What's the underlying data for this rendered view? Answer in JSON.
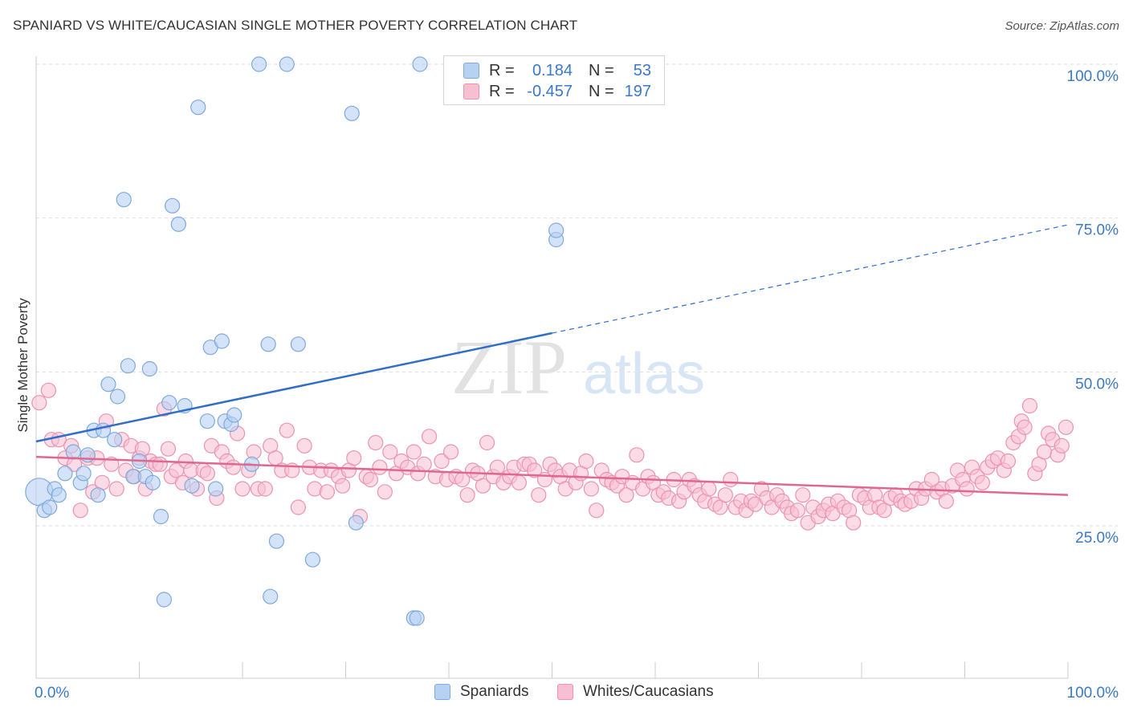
{
  "title": "SPANIARD VS WHITE/CAUCASIAN SINGLE MOTHER POVERTY CORRELATION CHART",
  "source": "Source: ZipAtlas.com",
  "watermark": {
    "zip": "ZIP",
    "atlas": "atlas"
  },
  "colors": {
    "blue_fill": "#b7d1f2",
    "blue_stroke": "#7fa9dc",
    "blue_line": "#2f6fc8",
    "pink_fill": "#f7c0d1",
    "pink_stroke": "#ec92b0",
    "pink_line": "#e0688f",
    "tick_label": "#3a78c8",
    "grid": "#dddddd"
  },
  "legend": {
    "rows": [
      {
        "r_label": "R =",
        "r_value": "0.184",
        "n_label": "N =",
        "n_value": "53"
      },
      {
        "r_label": "R =",
        "r_value": "-0.457",
        "n_label": "N =",
        "n_value": "197"
      }
    ]
  },
  "bottom_legend": {
    "items": [
      "Spaniards",
      "Whites/Caucasians"
    ]
  },
  "chart_data": {
    "type": "scatter",
    "title": "SPANIARD VS WHITE/CAUCASIAN SINGLE MOTHER POVERTY CORRELATION CHART",
    "xlabel": "",
    "ylabel": "Single Mother Poverty",
    "x_tick_labels": [
      "0.0%",
      "100.0%"
    ],
    "y_tick_labels": [
      "25.0%",
      "50.0%",
      "75.0%",
      "100.0%"
    ],
    "y_ticks": [
      25,
      50,
      75,
      100
    ],
    "xlim": [
      0,
      100
    ],
    "ylim": [
      0,
      102
    ],
    "grid": true,
    "series": [
      {
        "name": "Spaniards",
        "points": [
          [
            0.3,
            30.5
          ],
          [
            0.8,
            27.5
          ],
          [
            1.3,
            28
          ],
          [
            1.8,
            31
          ],
          [
            2.2,
            30
          ],
          [
            2.8,
            33.5
          ],
          [
            3.6,
            37
          ],
          [
            4.3,
            32
          ],
          [
            4.6,
            33.5
          ],
          [
            5,
            36.5
          ],
          [
            5.6,
            40.5
          ],
          [
            6,
            30
          ],
          [
            6.5,
            40.5
          ],
          [
            7,
            48
          ],
          [
            7.6,
            39
          ],
          [
            7.9,
            46
          ],
          [
            8.5,
            78
          ],
          [
            8.9,
            51
          ],
          [
            9.4,
            33
          ],
          [
            10,
            35.5
          ],
          [
            10.6,
            33
          ],
          [
            11,
            50.5
          ],
          [
            11.3,
            32
          ],
          [
            12.1,
            26.5
          ],
          [
            12.4,
            13
          ],
          [
            12.9,
            45
          ],
          [
            13.2,
            77
          ],
          [
            13.8,
            74
          ],
          [
            14.4,
            44.5
          ],
          [
            15.1,
            31.5
          ],
          [
            15.7,
            93
          ],
          [
            16.6,
            42
          ],
          [
            16.9,
            54
          ],
          [
            17.4,
            31
          ],
          [
            18,
            55
          ],
          [
            18.3,
            42
          ],
          [
            18.9,
            41.5
          ],
          [
            19.2,
            43
          ],
          [
            20.9,
            35
          ],
          [
            21.6,
            100
          ],
          [
            22.5,
            54.5
          ],
          [
            22.7,
            13.5
          ],
          [
            23.3,
            22.5
          ],
          [
            24.3,
            100
          ],
          [
            25.4,
            54.5
          ],
          [
            26.8,
            19.5
          ],
          [
            30.6,
            92
          ],
          [
            31,
            25.5
          ],
          [
            36.6,
            10
          ],
          [
            36.9,
            10
          ],
          [
            37.2,
            100
          ],
          [
            50.4,
            71.5
          ],
          [
            50.4,
            73
          ]
        ]
      },
      {
        "name": "Whites/Caucasians",
        "points": [
          [
            0.3,
            45
          ],
          [
            1.2,
            47
          ],
          [
            1.5,
            39
          ],
          [
            2.2,
            39
          ],
          [
            2.8,
            36
          ],
          [
            3.4,
            38
          ],
          [
            3.7,
            35
          ],
          [
            4.3,
            27.5
          ],
          [
            5,
            36
          ],
          [
            5.5,
            30.5
          ],
          [
            5.9,
            36
          ],
          [
            6.4,
            32
          ],
          [
            6.8,
            42
          ],
          [
            7.3,
            35
          ],
          [
            7.8,
            31
          ],
          [
            8.3,
            39
          ],
          [
            8.7,
            34
          ],
          [
            9.2,
            38
          ],
          [
            9.5,
            33
          ],
          [
            10,
            36
          ],
          [
            10.3,
            37.5
          ],
          [
            10.6,
            31
          ],
          [
            11.1,
            35.5
          ],
          [
            11.6,
            35
          ],
          [
            12,
            35
          ],
          [
            12.4,
            44
          ],
          [
            12.8,
            37.5
          ],
          [
            13.1,
            33
          ],
          [
            13.6,
            34
          ],
          [
            14.2,
            32
          ],
          [
            14.5,
            35.5
          ],
          [
            15,
            34
          ],
          [
            15.6,
            31
          ],
          [
            16.2,
            34
          ],
          [
            16.6,
            33.5
          ],
          [
            17,
            38
          ],
          [
            17.5,
            29.5
          ],
          [
            18,
            37
          ],
          [
            18.5,
            35.5
          ],
          [
            19.1,
            34.5
          ],
          [
            19.5,
            40
          ],
          [
            20,
            31
          ],
          [
            20.6,
            34
          ],
          [
            21.1,
            37
          ],
          [
            21.5,
            31
          ],
          [
            22.2,
            31
          ],
          [
            22.7,
            38
          ],
          [
            23.2,
            36
          ],
          [
            23.8,
            34
          ],
          [
            24.3,
            40.5
          ],
          [
            24.8,
            34
          ],
          [
            25.4,
            28
          ],
          [
            26,
            38
          ],
          [
            26.5,
            34.5
          ],
          [
            27,
            31
          ],
          [
            27.6,
            34
          ],
          [
            28.2,
            30.5
          ],
          [
            28.6,
            34
          ],
          [
            29.3,
            33
          ],
          [
            29.7,
            31.5
          ],
          [
            30.3,
            34
          ],
          [
            30.8,
            36
          ],
          [
            31.4,
            26.5
          ],
          [
            32,
            33
          ],
          [
            32.4,
            32.5
          ],
          [
            32.9,
            38.5
          ],
          [
            33.3,
            34.5
          ],
          [
            33.8,
            30.5
          ],
          [
            34.3,
            37
          ],
          [
            34.9,
            33.5
          ],
          [
            35.4,
            35.5
          ],
          [
            36,
            34.5
          ],
          [
            36.6,
            37
          ],
          [
            37,
            33.5
          ],
          [
            37.6,
            35
          ],
          [
            38.1,
            39.5
          ],
          [
            38.7,
            33
          ],
          [
            39.3,
            35.5
          ],
          [
            39.8,
            32.5
          ],
          [
            40.2,
            37
          ],
          [
            40.7,
            33
          ],
          [
            41.3,
            32.5
          ],
          [
            41.8,
            30
          ],
          [
            42.3,
            34
          ],
          [
            42.8,
            33.5
          ],
          [
            43.3,
            31.5
          ],
          [
            43.7,
            38.5
          ],
          [
            44.3,
            33
          ],
          [
            44.7,
            34.5
          ],
          [
            45.3,
            32
          ],
          [
            45.9,
            33
          ],
          [
            46.3,
            34.5
          ],
          [
            46.8,
            32
          ],
          [
            47.3,
            35
          ],
          [
            47.8,
            35
          ],
          [
            48.3,
            34
          ],
          [
            48.7,
            30
          ],
          [
            49.3,
            32.5
          ],
          [
            49.8,
            35
          ],
          [
            50.3,
            34
          ],
          [
            50.8,
            33
          ],
          [
            51.3,
            31
          ],
          [
            51.7,
            34
          ],
          [
            52.3,
            32
          ],
          [
            52.8,
            33.5
          ],
          [
            53.3,
            35.5
          ],
          [
            53.8,
            31
          ],
          [
            54.3,
            27.5
          ],
          [
            54.8,
            34
          ],
          [
            55.3,
            32.5
          ],
          [
            55.8,
            32
          ],
          [
            56.3,
            31.5
          ],
          [
            56.8,
            33
          ],
          [
            57.2,
            30
          ],
          [
            57.8,
            32
          ],
          [
            58.2,
            36.5
          ],
          [
            58.8,
            31
          ],
          [
            59.3,
            33
          ],
          [
            59.8,
            32
          ],
          [
            60.3,
            30
          ],
          [
            60.8,
            30.5
          ],
          [
            61.3,
            29.5
          ],
          [
            61.8,
            32.5
          ],
          [
            62.3,
            29
          ],
          [
            62.8,
            30.5
          ],
          [
            63.3,
            32.5
          ],
          [
            63.8,
            31.5
          ],
          [
            64.3,
            30
          ],
          [
            64.8,
            29
          ],
          [
            65.2,
            31
          ],
          [
            65.8,
            28.5
          ],
          [
            66.3,
            28
          ],
          [
            66.8,
            30
          ],
          [
            67.3,
            32.5
          ],
          [
            67.8,
            28
          ],
          [
            68.3,
            29
          ],
          [
            68.8,
            27.5
          ],
          [
            69.3,
            29
          ],
          [
            69.7,
            28.5
          ],
          [
            70.3,
            31
          ],
          [
            70.8,
            29.5
          ],
          [
            71.3,
            28
          ],
          [
            71.8,
            30
          ],
          [
            72.3,
            29
          ],
          [
            72.8,
            28
          ],
          [
            73.2,
            27
          ],
          [
            73.8,
            27.5
          ],
          [
            74.3,
            30
          ],
          [
            74.8,
            25.5
          ],
          [
            75.3,
            28
          ],
          [
            75.8,
            26.5
          ],
          [
            76.3,
            27.5
          ],
          [
            76.8,
            28.5
          ],
          [
            77.2,
            27
          ],
          [
            77.7,
            29
          ],
          [
            78.3,
            28
          ],
          [
            78.8,
            27.5
          ],
          [
            79.2,
            25.5
          ],
          [
            79.8,
            30
          ],
          [
            80.3,
            29.5
          ],
          [
            80.8,
            28
          ],
          [
            81.3,
            30
          ],
          [
            81.7,
            28
          ],
          [
            82.2,
            27.5
          ],
          [
            82.8,
            29.5
          ],
          [
            83.3,
            30
          ],
          [
            83.8,
            29
          ],
          [
            84.2,
            28.5
          ],
          [
            84.8,
            29
          ],
          [
            85.3,
            31
          ],
          [
            85.8,
            29.5
          ],
          [
            86.2,
            31
          ],
          [
            86.8,
            32.5
          ],
          [
            87.3,
            30.5
          ],
          [
            87.8,
            31
          ],
          [
            88.2,
            29
          ],
          [
            88.8,
            31.5
          ],
          [
            89.3,
            34
          ],
          [
            89.8,
            32.5
          ],
          [
            90.2,
            31
          ],
          [
            90.7,
            34.5
          ],
          [
            91.2,
            33
          ],
          [
            91.7,
            32
          ],
          [
            92.2,
            34.5
          ],
          [
            92.7,
            35.5
          ],
          [
            93.2,
            36
          ],
          [
            93.8,
            34
          ],
          [
            94.2,
            35.5
          ],
          [
            94.7,
            38.5
          ],
          [
            95.2,
            39.5
          ],
          [
            95.5,
            42
          ],
          [
            95.8,
            41
          ],
          [
            96.3,
            44.5
          ],
          [
            96.8,
            33.5
          ],
          [
            97.2,
            35
          ],
          [
            97.7,
            37
          ],
          [
            98.1,
            40
          ],
          [
            98.5,
            39
          ],
          [
            99,
            36.5
          ],
          [
            99.4,
            38
          ],
          [
            99.8,
            41
          ]
        ]
      }
    ],
    "trendlines": [
      {
        "series": "Spaniards",
        "x_start": 0,
        "y_start": 38.7,
        "x_solid_end": 50,
        "y_solid_end": 56.3,
        "x_end": 100,
        "y_end": 73.9
      },
      {
        "series": "Whites/Caucasians",
        "x_start": 0,
        "y_start": 36.2,
        "x_end": 100,
        "y_end": 30.0
      }
    ]
  }
}
